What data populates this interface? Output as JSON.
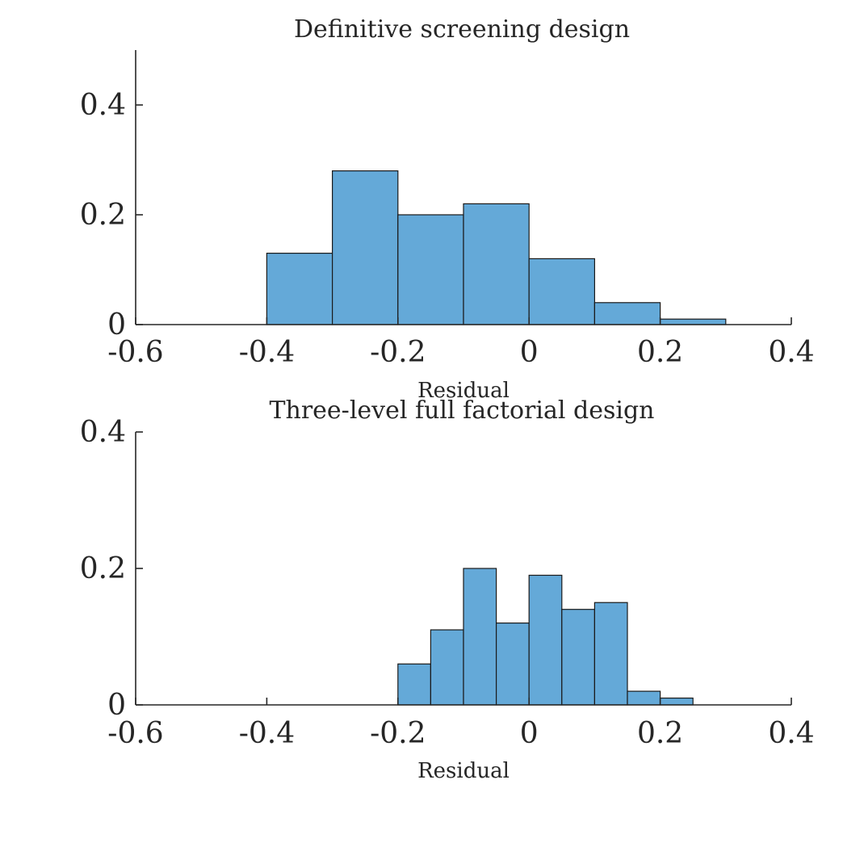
{
  "chart_data": [
    {
      "type": "bar",
      "title": "Definitive screening design",
      "xlabel": "Residual",
      "ylabel": "",
      "xlim": [
        -0.6,
        0.4
      ],
      "ylim": [
        0,
        0.5
      ],
      "xticks": [
        "-0.6",
        "-0.4",
        "-0.2",
        "0",
        "0.2",
        "0.4"
      ],
      "yticks": [
        "0",
        "0.2",
        "0.4"
      ],
      "bin_edges": [
        -0.4,
        -0.3,
        -0.2,
        -0.1,
        0.0,
        0.1,
        0.2,
        0.3
      ],
      "values": [
        0.13,
        0.28,
        0.2,
        0.22,
        0.12,
        0.04,
        0.01
      ],
      "bar_color": "#64a9d8",
      "grid": false
    },
    {
      "type": "bar",
      "title": "Three-level full factorial design",
      "xlabel": "Residual",
      "ylabel": "",
      "xlim": [
        -0.6,
        0.4
      ],
      "ylim": [
        0,
        0.4
      ],
      "xticks": [
        "-0.6",
        "-0.4",
        "-0.2",
        "0",
        "0.2",
        "0.4"
      ],
      "yticks": [
        "0",
        "0.2",
        "0.4"
      ],
      "bin_edges": [
        -0.2,
        -0.15,
        -0.1,
        -0.05,
        0.0,
        0.05,
        0.1,
        0.15,
        0.2,
        0.25
      ],
      "values": [
        0.06,
        0.11,
        0.2,
        0.12,
        0.19,
        0.14,
        0.15,
        0.02,
        0.01
      ],
      "bar_color": "#64a9d8",
      "grid": false
    }
  ]
}
